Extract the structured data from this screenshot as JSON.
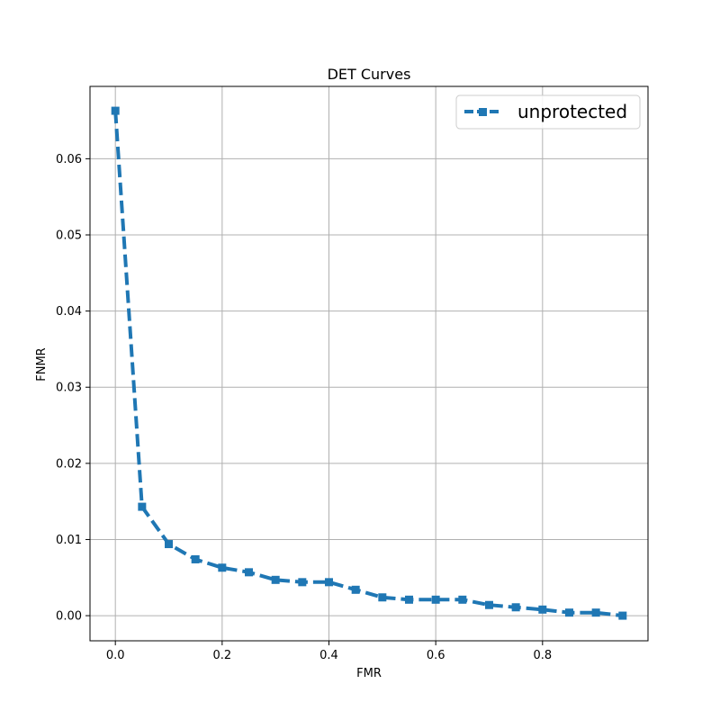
{
  "chart_data": {
    "type": "line",
    "title": "DET Curves",
    "xlabel": "FMR",
    "ylabel": "FNMR",
    "xlim": [
      -0.0475,
      0.9975
    ],
    "ylim": [
      -0.0033,
      0.0695
    ],
    "xticks": [
      "0.0",
      "0.2",
      "0.4",
      "0.6",
      "0.8"
    ],
    "yticks": [
      "0.00",
      "0.01",
      "0.02",
      "0.03",
      "0.04",
      "0.05",
      "0.06"
    ],
    "grid": true,
    "legend_position": "top-right",
    "series": [
      {
        "name": "unprotected",
        "color": "#1f77b4",
        "line_style": "dashed",
        "marker": "square",
        "x": [
          0.0,
          0.05,
          0.1,
          0.15,
          0.2,
          0.25,
          0.3,
          0.35,
          0.4,
          0.45,
          0.5,
          0.55,
          0.6,
          0.65,
          0.7,
          0.75,
          0.8,
          0.85,
          0.9,
          0.95
        ],
        "y": [
          0.0663,
          0.0143,
          0.0094,
          0.0074,
          0.0063,
          0.0057,
          0.0047,
          0.0044,
          0.0044,
          0.0034,
          0.0024,
          0.0021,
          0.0021,
          0.0021,
          0.0014,
          0.0011,
          0.0008,
          0.0004,
          0.0004,
          0.0
        ]
      }
    ]
  }
}
